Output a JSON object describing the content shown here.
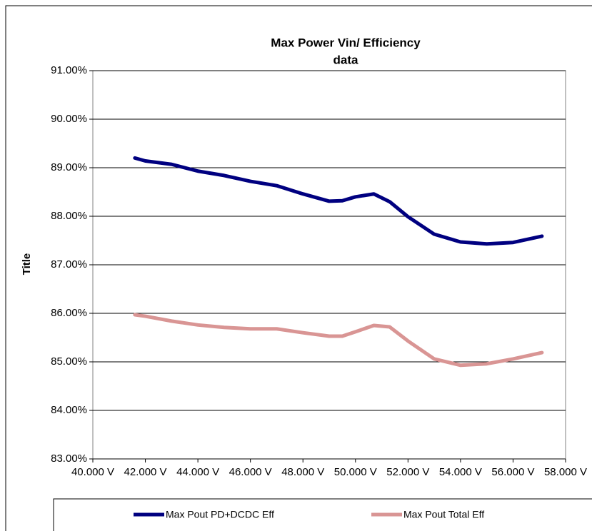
{
  "chart_data": {
    "type": "line",
    "title": [
      "Max Power Vin/ Efficiency",
      "data"
    ],
    "ylabel": "Title",
    "x": [
      41.6,
      42,
      43,
      44,
      45,
      46,
      47,
      48,
      49,
      49.5,
      50,
      50.7,
      51.3,
      52,
      53,
      54,
      55,
      56,
      57.1
    ],
    "series": [
      {
        "name": "Max Pout PD+DCDC Eff",
        "color": "#000080",
        "values": [
          89.2,
          89.14,
          89.07,
          88.93,
          88.84,
          88.72,
          88.63,
          88.46,
          88.31,
          88.32,
          88.4,
          88.46,
          88.3,
          87.99,
          87.63,
          87.47,
          87.43,
          87.46,
          87.59
        ]
      },
      {
        "name": "Max Pout Total Eff",
        "color": "#d99594",
        "values": [
          85.97,
          85.94,
          85.84,
          85.76,
          85.71,
          85.68,
          85.68,
          85.6,
          85.53,
          85.53,
          85.62,
          85.75,
          85.72,
          85.43,
          85.06,
          84.93,
          84.96,
          85.06,
          85.19
        ]
      }
    ],
    "xlim": [
      40,
      58
    ],
    "xticks": [
      {
        "value": 40,
        "label": "40.000 V"
      },
      {
        "value": 42,
        "label": "42.000 V"
      },
      {
        "value": 44,
        "label": "44.000 V"
      },
      {
        "value": 46,
        "label": "46.000 V"
      },
      {
        "value": 48,
        "label": "48.000 V"
      },
      {
        "value": 50,
        "label": "50.000 V"
      },
      {
        "value": 52,
        "label": "52.000 V"
      },
      {
        "value": 54,
        "label": "54.000 V"
      },
      {
        "value": 56,
        "label": "56.000 V"
      },
      {
        "value": 58,
        "label": "58.000 V"
      }
    ],
    "ylim": [
      83,
      91
    ],
    "yticks": [
      {
        "value": 83,
        "label": "83.00%"
      },
      {
        "value": 84,
        "label": "84.00%"
      },
      {
        "value": 85,
        "label": "85.00%"
      },
      {
        "value": 86,
        "label": "86.00%"
      },
      {
        "value": 87,
        "label": "87.00%"
      },
      {
        "value": 88,
        "label": "88.00%"
      },
      {
        "value": 89,
        "label": "89.00%"
      },
      {
        "value": 90,
        "label": "90.00%"
      },
      {
        "value": 91,
        "label": "91.00%"
      }
    ],
    "grid": true,
    "legend": "bottom"
  }
}
